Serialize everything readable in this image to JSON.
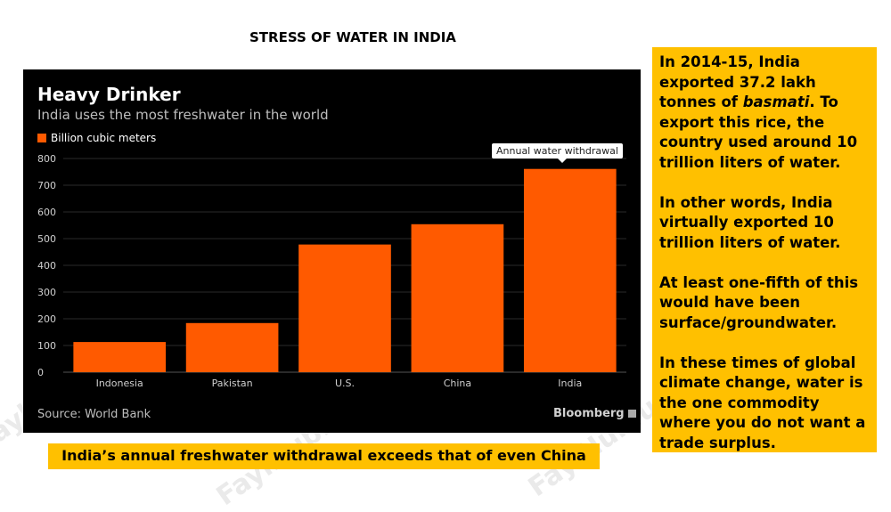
{
  "slide": {
    "title": "STRESS OF WATER IN INDIA",
    "caption": "India’s annual freshwater withdrawal exceeds that of even China",
    "watermark": "FaylHub.uz"
  },
  "side_panel": {
    "p1_before": "In 2014-15, India exported 37.2 lakh tonnes of ",
    "p1_italic": "basmati",
    "p1_after": ". To export this rice, the country used around 10 trillion liters of water.",
    "p2": "In other words, India virtually exported 10 trillion liters of water.",
    "p3": "At least one-fifth of this would have been surface/groundwater.",
    "p4": "In these times of global climate change, water is the one commodity where you do not want a trade surplus."
  },
  "chart_data": {
    "type": "bar",
    "title": "Heavy Drinker",
    "subtitle": "India uses the most freshwater in the world",
    "legend": [
      "Billion cubic meters"
    ],
    "categories": [
      "Indonesia",
      "Pakistan",
      "U.S.",
      "China",
      "India"
    ],
    "values": [
      113,
      184,
      478,
      554,
      761
    ],
    "ylim": [
      0,
      800
    ],
    "yticks": [
      0,
      100,
      200,
      300,
      400,
      500,
      600,
      700,
      800
    ],
    "annotation": "Annual water withdrawal",
    "source": "Source: World Bank",
    "brand": "Bloomberg",
    "bar_color": "#ff5a00",
    "background": "#000000"
  }
}
